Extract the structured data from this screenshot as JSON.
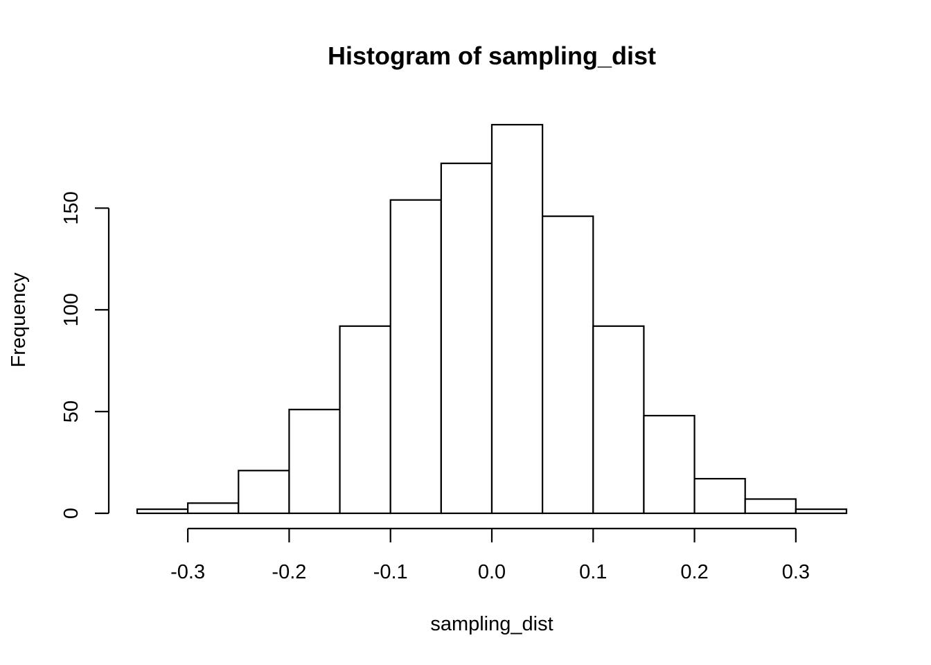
{
  "chart_data": {
    "type": "bar",
    "title": "Histogram of sampling_dist",
    "xlabel": "sampling_dist",
    "ylabel": "Frequency",
    "bins": [
      {
        "start": -0.35,
        "end": -0.3,
        "count": 2
      },
      {
        "start": -0.3,
        "end": -0.25,
        "count": 5
      },
      {
        "start": -0.25,
        "end": -0.2,
        "count": 21
      },
      {
        "start": -0.2,
        "end": -0.15,
        "count": 51
      },
      {
        "start": -0.15,
        "end": -0.1,
        "count": 92
      },
      {
        "start": -0.1,
        "end": -0.05,
        "count": 154
      },
      {
        "start": -0.05,
        "end": 0.0,
        "count": 172
      },
      {
        "start": 0.0,
        "end": 0.05,
        "count": 191
      },
      {
        "start": 0.05,
        "end": 0.1,
        "count": 146
      },
      {
        "start": 0.1,
        "end": 0.15,
        "count": 92
      },
      {
        "start": 0.15,
        "end": 0.2,
        "count": 48
      },
      {
        "start": 0.2,
        "end": 0.25,
        "count": 17
      },
      {
        "start": 0.25,
        "end": 0.3,
        "count": 7
      },
      {
        "start": 0.3,
        "end": 0.35,
        "count": 2
      }
    ],
    "x_ticks": [
      -0.3,
      -0.2,
      -0.1,
      0.0,
      0.1,
      0.2,
      0.3
    ],
    "x_tick_labels": [
      "-0.3",
      "-0.2",
      "-0.1",
      "0.0",
      "0.1",
      "0.2",
      "0.3"
    ],
    "y_ticks": [
      0,
      50,
      100,
      150
    ],
    "y_tick_labels": [
      "0",
      "50",
      "100",
      "150"
    ],
    "xlim": [
      -0.35,
      0.35
    ],
    "ylim": [
      0,
      191
    ],
    "grid": false,
    "colors": {
      "bar_fill": "#ffffff",
      "bar_stroke": "#000000"
    }
  }
}
